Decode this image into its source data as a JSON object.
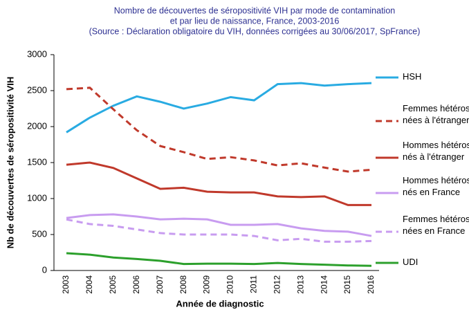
{
  "chart_data": {
    "type": "line",
    "title": "Nombre de découvertes de séropositivité VIH par mode de contamination",
    "subtitle": "et par lieu de naissance, France, 2003-2016",
    "source": "(Source : Déclaration obligatoire du VIH, données corrigées au 30/06/2017, SpFrance)",
    "x_label": "Année de diagnostic",
    "y_label": "Nb de découvertes de séropositivité VIH",
    "categories": [
      "2003",
      "2004",
      "2005",
      "2006",
      "2007",
      "2008",
      "2009",
      "2010",
      "2011",
      "2012",
      "2013",
      "2014",
      "2015",
      "2016"
    ],
    "ylim": [
      0,
      3000
    ],
    "yticks": [
      0,
      500,
      1000,
      1500,
      2000,
      2500,
      3000
    ],
    "series": [
      {
        "name": "HSH",
        "color": "#29abe2",
        "dashed": false,
        "values": [
          1920,
          2125,
          2290,
          2420,
          2345,
          2250,
          2320,
          2410,
          2365,
          2590,
          2605,
          2570,
          2590,
          2605
        ]
      },
      {
        "name": "Femmes hétérosexuelles\nnées à l'étranger",
        "color": "#c0392b",
        "dashed": true,
        "values": [
          2520,
          2540,
          2240,
          1950,
          1730,
          1645,
          1550,
          1575,
          1530,
          1460,
          1490,
          1430,
          1375,
          1400
        ]
      },
      {
        "name": "Hommes hétérosexuels\nnés à l'étranger",
        "color": "#c0392b",
        "dashed": false,
        "values": [
          1470,
          1500,
          1425,
          1280,
          1135,
          1150,
          1095,
          1085,
          1085,
          1030,
          1020,
          1030,
          910,
          910
        ]
      },
      {
        "name": "Hommes hétérosexuels\nnés en France",
        "color": "#c89cf0",
        "dashed": false,
        "values": [
          730,
          770,
          780,
          750,
          710,
          720,
          710,
          635,
          635,
          645,
          585,
          550,
          540,
          480
        ]
      },
      {
        "name": "Femmes hétérosexuelles\nnées en France",
        "color": "#c89cf0",
        "dashed": true,
        "values": [
          710,
          645,
          620,
          570,
          520,
          500,
          500,
          500,
          480,
          420,
          440,
          400,
          400,
          410
        ]
      },
      {
        "name": "UDI",
        "color": "#2ca02c",
        "dashed": false,
        "values": [
          240,
          220,
          180,
          160,
          135,
          90,
          95,
          95,
          90,
          105,
          90,
          80,
          70,
          65
        ]
      }
    ]
  }
}
